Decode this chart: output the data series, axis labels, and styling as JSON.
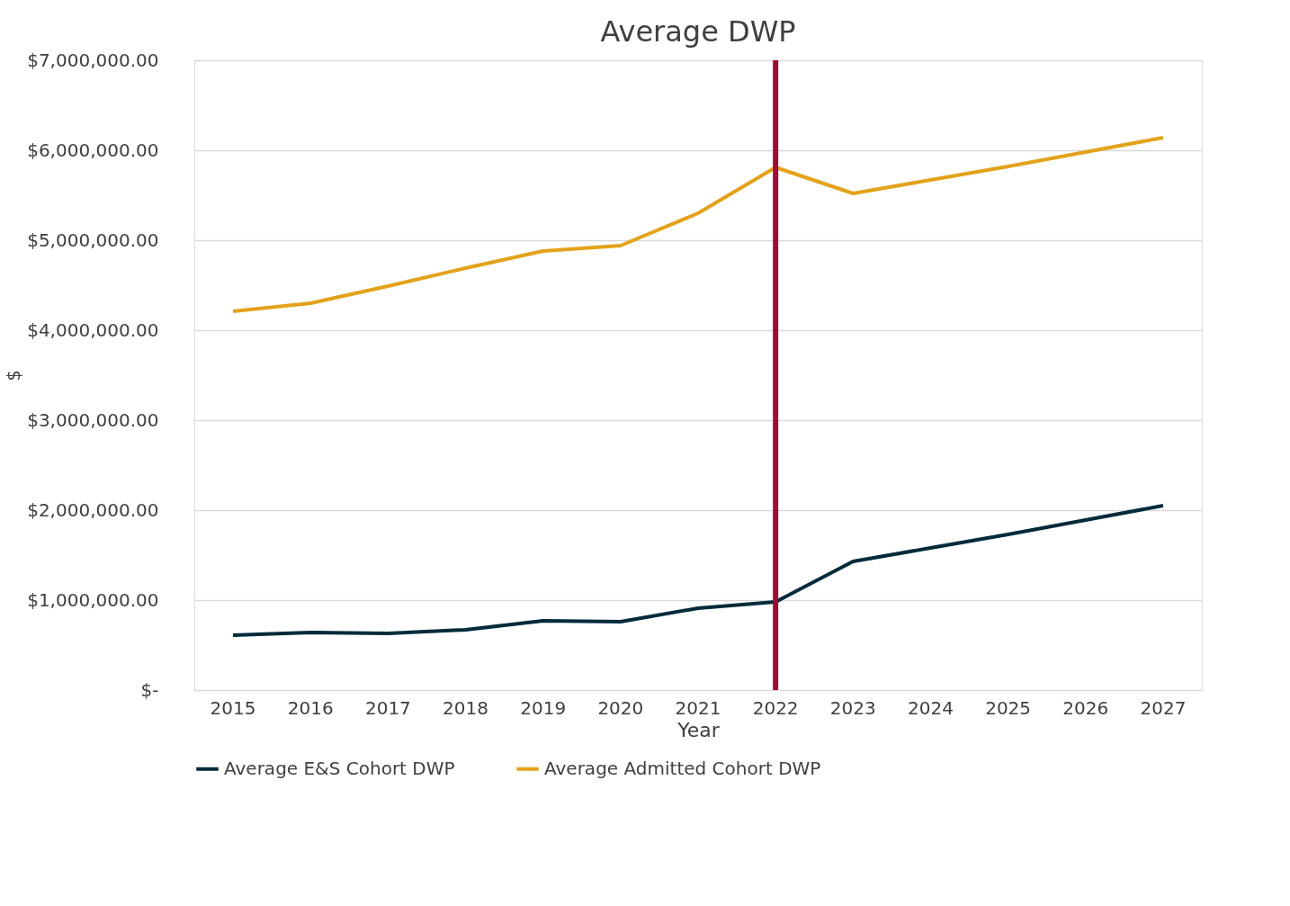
{
  "chart_data": {
    "type": "line",
    "title": "Average DWP",
    "xlabel": "Year",
    "ylabel": "$",
    "categories": [
      "2015",
      "2016",
      "2017",
      "2018",
      "2019",
      "2020",
      "2021",
      "2022",
      "2023",
      "2024",
      "2025",
      "2026",
      "2027"
    ],
    "series": [
      {
        "name": "Average E&S Cohort DWP",
        "color": "#022b3a",
        "values": [
          610000,
          640000,
          630000,
          670000,
          770000,
          760000,
          910000,
          980000,
          1430000,
          1580000,
          1730000,
          1890000,
          2050000
        ]
      },
      {
        "name": "Average Admitted Cohort DWP",
        "color": "#e3a21a",
        "values": [
          4210000,
          4300000,
          4490000,
          4690000,
          4880000,
          4940000,
          5300000,
          5810000,
          5520000,
          5670000,
          5820000,
          5980000,
          6140000
        ]
      }
    ],
    "ylim": [
      0,
      7000000
    ],
    "yticks": [
      {
        "value": 0,
        "label": "$-"
      },
      {
        "value": 1000000,
        "label": "$1,000,000.00"
      },
      {
        "value": 2000000,
        "label": "$2,000,000.00"
      },
      {
        "value": 3000000,
        "label": "$3,000,000.00"
      },
      {
        "value": 4000000,
        "label": "$4,000,000.00"
      },
      {
        "value": 5000000,
        "label": "$5,000,000.00"
      },
      {
        "value": 6000000,
        "label": "$6,000,000.00"
      },
      {
        "value": 7000000,
        "label": "$7,000,000.00"
      }
    ],
    "ref_lines": [
      {
        "axis": "x",
        "value": "2022",
        "color": "#9b0d33"
      }
    ],
    "grid": "y",
    "legend": "bottom",
    "marker": "none",
    "line_style": "solid"
  }
}
